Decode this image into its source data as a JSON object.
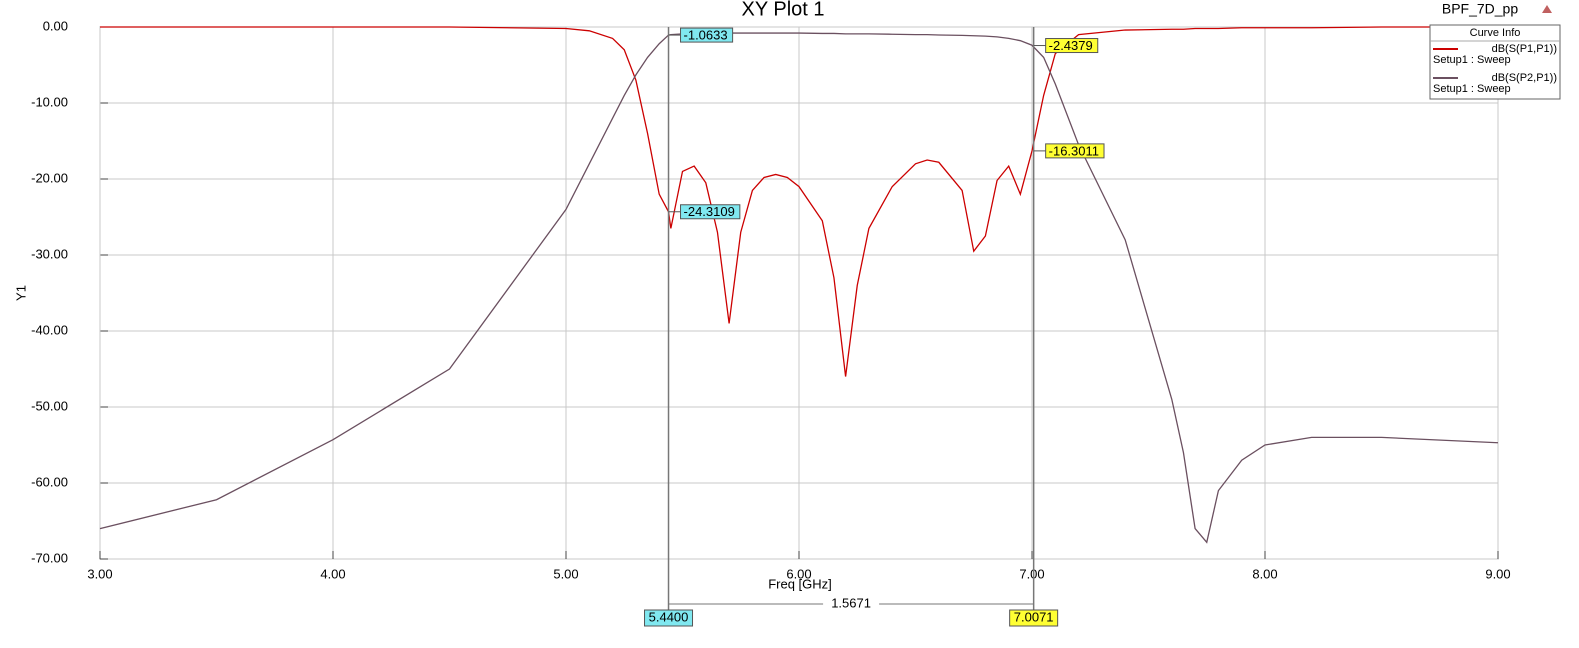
{
  "chart_data": {
    "type": "line",
    "title": "XY Plot 1",
    "project": "BPF_7D_pp",
    "xlabel": "Freq [GHz]",
    "ylabel": "Y1",
    "legend_title": "Curve Info",
    "legend": "upper right",
    "grid": true,
    "x": [
      3.0,
      3.5,
      4.0,
      4.5,
      5.0,
      5.1,
      5.2,
      5.25,
      5.3,
      5.35,
      5.4,
      5.44,
      5.45,
      5.5,
      5.55,
      5.6,
      5.65,
      5.7,
      5.75,
      5.8,
      5.85,
      5.9,
      5.95,
      6.0,
      6.1,
      6.15,
      6.2,
      6.25,
      6.3,
      6.4,
      6.5,
      6.55,
      6.6,
      6.7,
      6.75,
      6.8,
      6.85,
      6.9,
      6.95,
      7.0,
      7.05,
      7.1,
      7.2,
      7.4,
      7.6,
      7.65,
      7.7,
      7.75,
      7.8,
      7.9,
      8.0,
      8.2,
      8.5,
      9.0
    ],
    "series": [
      {
        "name": "dB(S(P1,P1))",
        "sweep": "Setup1 : Sweep",
        "color": "#cc0000",
        "values": [
          0,
          0,
          0,
          0,
          -0.2,
          -0.5,
          -1.5,
          -3,
          -7,
          -14,
          -22,
          -24.3109,
          -26.5,
          -19,
          -18.3,
          -20.5,
          -27,
          -39,
          -27,
          -21.5,
          -19.8,
          -19.4,
          -19.8,
          -21,
          -25.5,
          -33,
          -46,
          -34,
          -26.5,
          -21,
          -18,
          -17.5,
          -17.8,
          -21.5,
          -29.5,
          -27.5,
          -20.2,
          -18.3,
          -22,
          -16.3,
          -9,
          -3.5,
          -1,
          -0.4,
          -0.3,
          -0.3,
          -0.2,
          -0.2,
          -0.2,
          -0.1,
          -0.1,
          -0.1,
          0,
          0
        ]
      },
      {
        "name": "dB(S(P2,P1))",
        "sweep": "Setup1 : Sweep",
        "color": "#6b5060",
        "values": [
          -66,
          -62.2,
          -54.3,
          -45,
          -24,
          -18,
          -12,
          -9,
          -6.3,
          -4,
          -2.2,
          -1.06,
          -1,
          -0.9,
          -0.85,
          -0.8,
          -0.8,
          -0.8,
          -0.8,
          -0.8,
          -0.8,
          -0.8,
          -0.8,
          -0.8,
          -0.85,
          -0.85,
          -0.9,
          -0.9,
          -0.9,
          -0.95,
          -1,
          -1,
          -1.05,
          -1.1,
          -1.15,
          -1.2,
          -1.3,
          -1.5,
          -1.8,
          -2.4,
          -4,
          -7.5,
          -15.5,
          -28,
          -49,
          -56,
          -66,
          -67.8,
          -61,
          -57,
          -55,
          -54,
          -54,
          -54.7
        ]
      }
    ],
    "xlim": [
      3,
      9
    ],
    "xticks": [
      {
        "value": 3,
        "label": "3.00"
      },
      {
        "value": 4,
        "label": "4.00"
      },
      {
        "value": 5,
        "label": "5.00"
      },
      {
        "value": 6,
        "label": "6.00"
      },
      {
        "value": 7,
        "label": "7.00"
      },
      {
        "value": 8,
        "label": "8.00"
      },
      {
        "value": 9,
        "label": "9.00"
      }
    ],
    "ylim": [
      -70,
      0
    ],
    "yticks": [
      {
        "value": 0,
        "label": "0.00"
      },
      {
        "value": -10,
        "label": "-10.00"
      },
      {
        "value": -20,
        "label": "-20.00"
      },
      {
        "value": -30,
        "label": "-30.00"
      },
      {
        "value": -40,
        "label": "-40.00"
      },
      {
        "value": -50,
        "label": "-50.00"
      },
      {
        "value": -60,
        "label": "-60.00"
      },
      {
        "value": -70,
        "label": "-70.00"
      }
    ],
    "markers": [
      {
        "x": {
          "value": 5.44,
          "label": "5.4400"
        },
        "readouts": [
          -1.0633,
          -24.3109
        ],
        "color": "#80e8f0"
      },
      {
        "x": 7.0071,
        "readouts": [
          -2.4379,
          -16.3011
        ],
        "color": "#ffff33"
      }
    ],
    "marker_delta": 1.5671
  }
}
